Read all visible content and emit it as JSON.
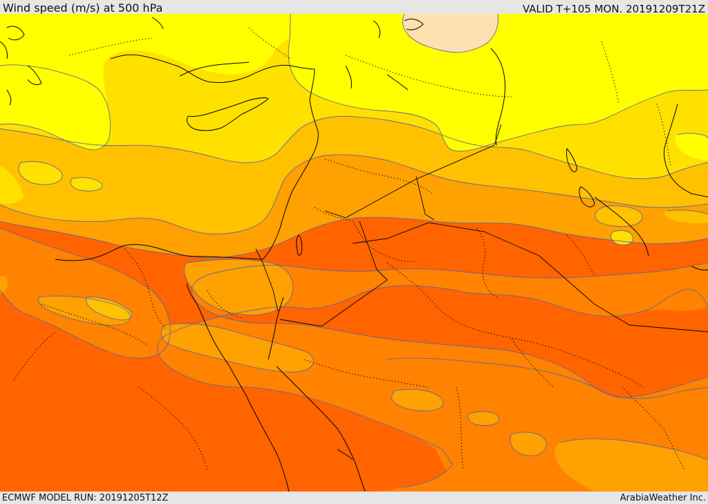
{
  "header": {
    "title": "Wind speed (m/s) at 500 hPa",
    "valid_time": "VALID T+105 MON. 20191209T21Z"
  },
  "footer": {
    "model_run": "ECMWF MODEL RUN: 20191205T12Z",
    "credit": "ArabiaWeather Inc."
  },
  "map": {
    "variable": "wind speed",
    "level": "500 hPa",
    "units": "m/s",
    "fill_colors": {
      "level_1": "#ffe0b0",
      "level_2": "#ffff00",
      "level_3": "#ffe100",
      "level_4": "#ffc100",
      "level_5": "#ffa100",
      "level_6": "#ff8200",
      "level_7": "#ff6400"
    },
    "contour_color": "#666699",
    "coastline_color": "#000000",
    "border_style": "dotted"
  }
}
